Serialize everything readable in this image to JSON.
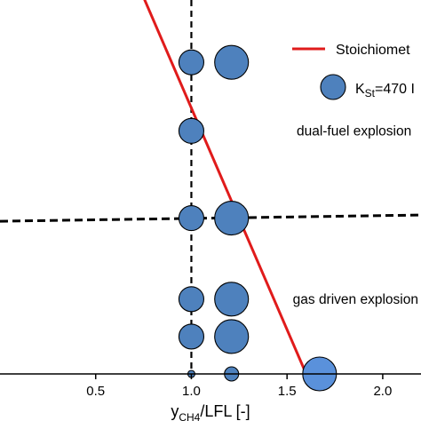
{
  "chart_data": {
    "type": "scatter",
    "title": "",
    "xlabel": {
      "main": "y",
      "sub": "CH4",
      "rest": "/LFL [-]"
    },
    "ylabel": "",
    "xlim": [
      0,
      2.2
    ],
    "ylim": [
      0,
      6
    ],
    "x_ticks": [
      {
        "value": 0.5,
        "label": "0.5"
      },
      {
        "value": 1.0,
        "label": "1.0"
      },
      {
        "value": 1.5,
        "label": "1.5"
      },
      {
        "value": 2.0,
        "label": "2.0"
      }
    ],
    "grid": false,
    "series": [
      {
        "name": "K_St=470 I",
        "color": "#4e81bd",
        "points": [
          {
            "x": 1.0,
            "y": 5.0,
            "size": 2
          },
          {
            "x": 1.21,
            "y": 5.0,
            "size": 3
          },
          {
            "x": 1.0,
            "y": 3.9,
            "size": 2
          },
          {
            "x": 1.0,
            "y": 2.5,
            "size": 2
          },
          {
            "x": 1.21,
            "y": 2.5,
            "size": 3
          },
          {
            "x": 1.0,
            "y": 1.2,
            "size": 2
          },
          {
            "x": 1.21,
            "y": 1.2,
            "size": 3
          },
          {
            "x": 1.0,
            "y": 0.6,
            "size": 2
          },
          {
            "x": 1.21,
            "y": 0.6,
            "size": 3
          },
          {
            "x": 1.0,
            "y": 0.0,
            "size": 0.5
          },
          {
            "x": 1.21,
            "y": 0.0,
            "size": 1
          },
          {
            "x": 1.67,
            "y": 0.0,
            "size": 3,
            "color": "#5a91db"
          }
        ]
      },
      {
        "name": "Stoichiomet",
        "type": "line",
        "color": "#e01b1b",
        "points": [
          {
            "x": 0.7,
            "y": 6.4
          },
          {
            "x": 1.6,
            "y": 0.0
          }
        ]
      }
    ],
    "reference_lines": [
      {
        "orientation": "vertical",
        "x": 1.0,
        "style": "dashed"
      },
      {
        "orientation": "horizontal",
        "y_start": 2.45,
        "y_end": 2.55,
        "style": "dashed"
      }
    ],
    "annotations": [
      {
        "text": "dual-fuel explosion",
        "x": 1.55,
        "y": 3.9
      },
      {
        "text": "gas driven explosion",
        "x": 1.53,
        "y": 1.2
      }
    ],
    "legend": {
      "placement": "top-right",
      "entries": [
        {
          "kind": "line",
          "label": "Stoichiomet",
          "color": "#e01b1b"
        },
        {
          "kind": "marker",
          "label_main": "K",
          "label_sub": "St",
          "label_rest": "=470 I",
          "color": "#4e81bd"
        }
      ]
    }
  }
}
